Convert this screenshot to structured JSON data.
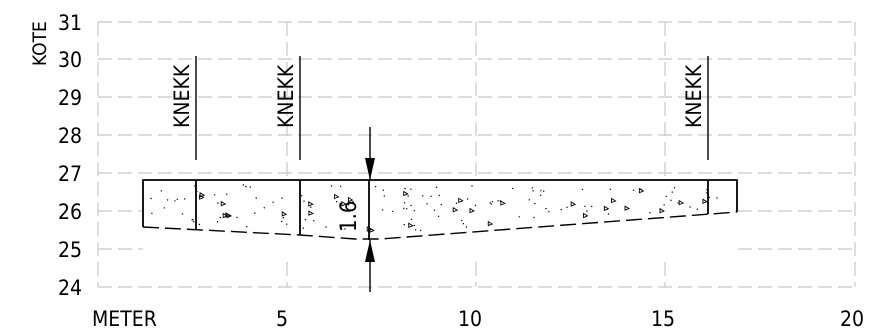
{
  "y_axis": {
    "label": "KOTE",
    "ticks": [
      "31",
      "30",
      "29",
      "28",
      "27",
      "26",
      "25",
      "24"
    ]
  },
  "x_axis": {
    "label": "METER",
    "ticks": [
      "5",
      "10",
      "15",
      "20"
    ]
  },
  "markers": [
    {
      "label": "KNEKK",
      "x_m": 2.65
    },
    {
      "label": "KNEKK",
      "x_m": 5.4
    },
    {
      "label": "KNEKK",
      "x_m": 16.2
    }
  ],
  "slab": {
    "x_start_m": 1.2,
    "x_end_m": 17.0,
    "top_kote": 26.8,
    "thickness_label": "1.6",
    "thickness_x_m": 7.2
  }
}
